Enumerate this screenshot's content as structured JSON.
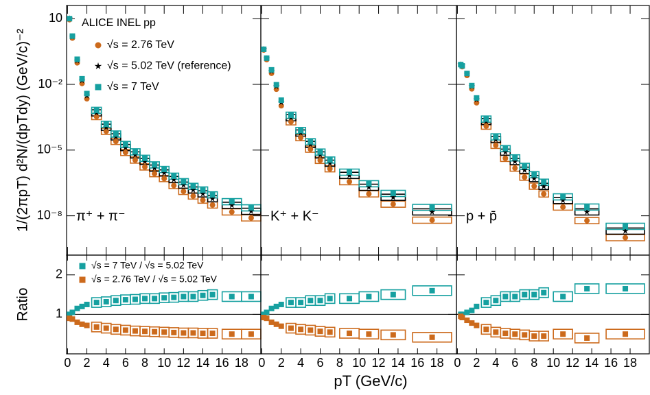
{
  "chart_data": [
    {
      "type": "scatter",
      "log_y": true,
      "legend_title": "ALICE INEL pp",
      "annotation": "π⁺ + π⁻",
      "y_label": "1/(2πpT) d²N/(dpTdy) (GeV/c)⁻²",
      "xlim": [
        -0.1,
        20
      ],
      "xticks": [
        0,
        2,
        4,
        6,
        8,
        10,
        12,
        14,
        16,
        18
      ],
      "ylim": [
        1.6e-10,
        40
      ],
      "yticks": [
        10,
        {
          "value": 0.01,
          "label": "10⁻²"
        },
        {
          "value": 1e-05,
          "label": "10⁻⁵"
        },
        {
          "value": 1e-08,
          "label": "10⁻⁸"
        }
      ],
      "x": [
        0.2,
        0.5,
        1,
        1.5,
        2,
        3,
        4,
        5,
        6,
        7,
        8,
        9,
        10,
        11,
        12,
        13,
        14,
        15,
        17,
        19
      ],
      "series": [
        {
          "name": "√s = 2.76 TeV",
          "color": "#cc6a1c",
          "marker": "circle",
          "values": [
            9,
            1.3,
            0.096,
            0.011,
            0.0022,
            0.00034,
            7.2e-05,
            2.5e-05,
            7.8e-06,
            3.5e-06,
            1.7e-06,
            8.4e-07,
            5e-07,
            2.4e-07,
            1.3e-07,
            8e-08,
            5.2e-08,
            3.1e-08,
            1.5e-08,
            8e-09
          ]
        },
        {
          "name": "√s = 5.02 TeV (reference)",
          "color": "#000000",
          "marker": "star",
          "values": [
            10,
            1.5,
            0.12,
            0.015,
            0.003,
            0.0005,
            0.00011,
            4e-05,
            1.3e-05,
            6e-06,
            3e-06,
            1.5e-06,
            9e-07,
            4.5e-07,
            2.5e-07,
            1.5e-07,
            1e-07,
            6e-08,
            3e-08,
            1.6e-08
          ]
        },
        {
          "name": "√s = 7 TeV",
          "color": "#16a0a0",
          "marker": "square",
          "values": [
            10,
            1.6,
            0.14,
            0.018,
            0.0038,
            0.00065,
            0.00015,
            5.4e-05,
            1.8e-05,
            8.3e-06,
            4.2e-06,
            2.1e-06,
            1.3e-06,
            6.4e-07,
            3.6e-07,
            2.2e-07,
            1.5e-07,
            9e-08,
            4.4e-08,
            2.3e-08
          ]
        }
      ]
    },
    {
      "type": "scatter",
      "log_y": true,
      "annotation": "K⁺ + K⁻",
      "xlim": [
        -0.1,
        20
      ],
      "xticks": [
        0,
        2,
        4,
        6,
        8,
        10,
        12,
        14,
        16,
        18
      ],
      "ylim": [
        1.6e-10,
        40
      ],
      "yticks": [
        10,
        0.01,
        1e-05,
        1e-08
      ],
      "x": [
        0.2,
        0.5,
        1,
        1.5,
        2,
        3,
        4,
        5,
        6,
        7,
        9,
        11,
        13.5,
        17.5
      ],
      "series": [
        {
          "color": "#cc6a1c",
          "marker": "circle",
          "values": [
            0.37,
            0.135,
            0.032,
            0.006,
            0.00105,
            0.000195,
            3.7e-05,
            1.1e-05,
            3.4e-06,
            1.4e-06,
            3.6e-07,
            1e-07,
            3.4e-08,
            6.3e-09
          ]
        },
        {
          "color": "#000000",
          "marker": "star",
          "values": [
            0.4,
            0.15,
            0.04,
            0.008,
            0.0015,
            0.0003,
            6e-05,
            1.8e-05,
            6e-06,
            2.5e-06,
            7e-07,
            2e-07,
            7e-08,
            1.5e-08
          ]
        },
        {
          "color": "#16a0a0",
          "marker": "square",
          "values": [
            0.4,
            0.158,
            0.046,
            0.0096,
            0.0019,
            0.00039,
            7.8e-05,
            2.4e-05,
            8.1e-06,
            3.5e-06,
            9.8e-07,
            2.9e-07,
            1.05e-07,
            2.4e-08
          ]
        }
      ]
    },
    {
      "type": "scatter",
      "log_y": true,
      "annotation": "p + p̄",
      "xlim": [
        -0.1,
        20
      ],
      "xticks": [
        0,
        2,
        4,
        6,
        8,
        10,
        12,
        14,
        16,
        18
      ],
      "ylim": [
        1.6e-10,
        40
      ],
      "yticks": [
        10,
        0.01,
        1e-05,
        1e-08
      ],
      "x": [
        0.35,
        0.5,
        1,
        1.5,
        2,
        3,
        4,
        5,
        6,
        7,
        8,
        9,
        11,
        13.5,
        17.5
      ],
      "series": [
        {
          "color": "#cc6a1c",
          "marker": "circle",
          "values": [
            0.076,
            0.064,
            0.0255,
            0.0062,
            0.00144,
            0.000124,
            1.65e-05,
            4.2e-06,
            1.5e-06,
            5.8e-07,
            2.25e-07,
            9.9e-08,
            2.5e-08,
            6e-09,
            1e-09
          ]
        },
        {
          "color": "#000000",
          "marker": "star",
          "values": [
            0.08,
            0.07,
            0.03,
            0.008,
            0.002,
            0.0002,
            3e-05,
            8e-06,
            3e-06,
            1.2e-06,
            5e-07,
            2.2e-07,
            5e-08,
            1.5e-08,
            2e-09
          ]
        },
        {
          "color": "#16a0a0",
          "marker": "square",
          "values": [
            0.08,
            0.07,
            0.0315,
            0.0088,
            0.0024,
            0.00026,
            4e-05,
            1.16e-05,
            4.4e-06,
            1.8e-06,
            7.5e-07,
            3.4e-07,
            7.3e-08,
            2.5e-08,
            3.3e-09
          ]
        }
      ]
    },
    {
      "type": "ratio",
      "y_label": "Ratio",
      "reference_line": 1,
      "xlim": [
        -0.1,
        20
      ],
      "xticks": [
        0,
        2,
        4,
        6,
        8,
        10,
        12,
        14,
        16,
        18
      ],
      "ylim": [
        0,
        2.5
      ],
      "yticks": [
        1,
        2
      ],
      "x": [
        0.2,
        0.5,
        1,
        1.5,
        2,
        3,
        4,
        5,
        6,
        7,
        8,
        9,
        10,
        11,
        12,
        13,
        14,
        15,
        17,
        19
      ],
      "series": [
        {
          "name": "√s = 7 TeV / √s = 5.02 TeV",
          "color": "#16a0a0",
          "marker": "square",
          "values": [
            1.0,
            1.05,
            1.15,
            1.2,
            1.25,
            1.3,
            1.32,
            1.35,
            1.37,
            1.38,
            1.4,
            1.4,
            1.42,
            1.43,
            1.45,
            1.45,
            1.48,
            1.5,
            1.45,
            1.45
          ]
        },
        {
          "name": "√s = 2.76 TeV / √s = 5.02 TeV",
          "color": "#cc6a1c",
          "marker": "square",
          "values": [
            0.9,
            0.88,
            0.8,
            0.75,
            0.72,
            0.68,
            0.65,
            0.62,
            0.6,
            0.58,
            0.57,
            0.56,
            0.55,
            0.54,
            0.53,
            0.53,
            0.52,
            0.52,
            0.5,
            0.5
          ]
        }
      ]
    },
    {
      "type": "ratio",
      "reference_line": 1,
      "x_label": "pT (GeV/c)",
      "xlim": [
        -0.1,
        20
      ],
      "xticks": [
        0,
        2,
        4,
        6,
        8,
        10,
        12,
        14,
        16,
        18
      ],
      "ylim": [
        0,
        2.5
      ],
      "yticks": [
        1,
        2
      ],
      "x": [
        0.2,
        0.5,
        1,
        1.5,
        2,
        3,
        4,
        5,
        6,
        7,
        9,
        11,
        13.5,
        17.5
      ],
      "series": [
        {
          "color": "#16a0a0",
          "marker": "square",
          "values": [
            1.0,
            1.05,
            1.15,
            1.2,
            1.25,
            1.3,
            1.3,
            1.35,
            1.35,
            1.4,
            1.4,
            1.45,
            1.5,
            1.6
          ]
        },
        {
          "color": "#cc6a1c",
          "marker": "square",
          "values": [
            0.92,
            0.9,
            0.8,
            0.75,
            0.7,
            0.65,
            0.62,
            0.6,
            0.57,
            0.55,
            0.52,
            0.5,
            0.48,
            0.42
          ]
        }
      ]
    },
    {
      "type": "ratio",
      "reference_line": 1,
      "xlim": [
        -0.1,
        20
      ],
      "xticks": [
        0,
        2,
        4,
        6,
        8,
        10,
        12,
        14,
        16,
        18
      ],
      "ylim": [
        0,
        2.5
      ],
      "yticks": [
        1,
        2
      ],
      "x": [
        0.35,
        0.5,
        1,
        1.5,
        2,
        3,
        4,
        5,
        6,
        7,
        8,
        9,
        11,
        13.5,
        17.5
      ],
      "series": [
        {
          "color": "#16a0a0",
          "marker": "square",
          "values": [
            1.0,
            1.0,
            1.05,
            1.1,
            1.2,
            1.3,
            1.35,
            1.45,
            1.45,
            1.5,
            1.5,
            1.55,
            1.45,
            1.65,
            1.65
          ]
        },
        {
          "color": "#cc6a1c",
          "marker": "square",
          "values": [
            0.95,
            0.92,
            0.85,
            0.78,
            0.72,
            0.62,
            0.55,
            0.52,
            0.5,
            0.48,
            0.45,
            0.45,
            0.5,
            0.4,
            0.5
          ]
        }
      ]
    }
  ]
}
